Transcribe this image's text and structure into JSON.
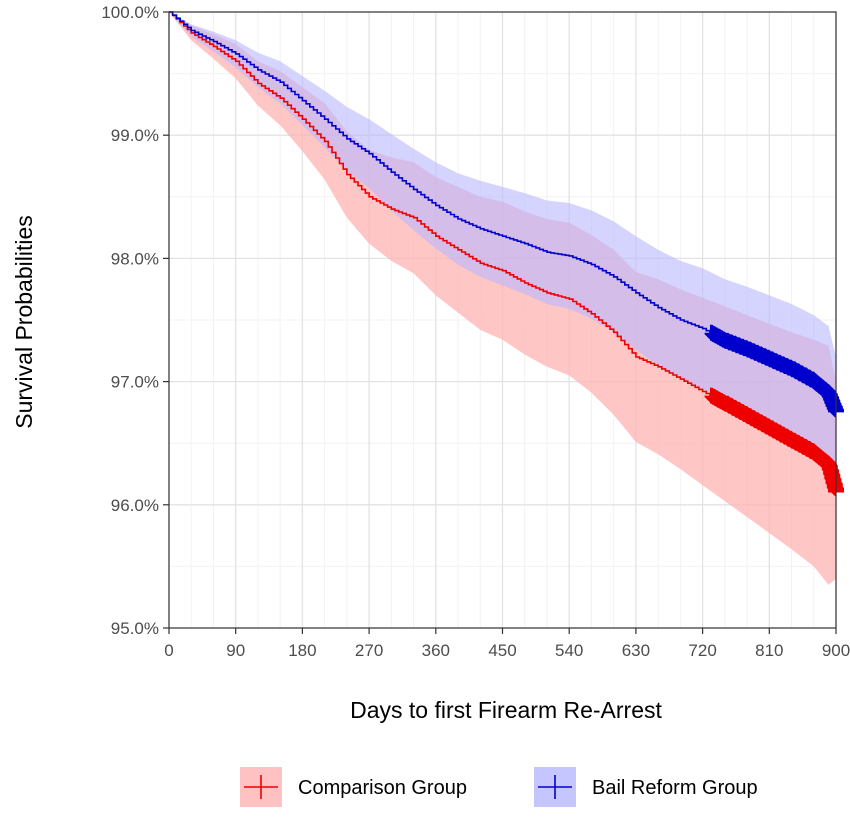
{
  "chart_data": {
    "type": "line",
    "title": "",
    "xlabel": "Days to first Firearm Re-Arrest",
    "ylabel": "Survival Probabilities",
    "xlim": [
      0,
      900
    ],
    "ylim": [
      95.0,
      100.0
    ],
    "x_ticks": [
      0,
      90,
      180,
      270,
      360,
      450,
      540,
      630,
      720,
      810,
      900
    ],
    "x_tick_labels": [
      "0",
      "90",
      "180",
      "270",
      "360",
      "450",
      "540",
      "630",
      "720",
      "810",
      "900"
    ],
    "y_ticks": [
      95,
      96,
      97,
      98,
      99,
      100
    ],
    "y_tick_labels": [
      "95.0%",
      "96.0%",
      "97.0%",
      "98.0%",
      "99.0%",
      "100.0%"
    ],
    "grid": true,
    "legend_position": "bottom",
    "series": [
      {
        "name": "Comparison Group",
        "color": "#ee0000",
        "band_color": "#ffb3b3",
        "x": [
          0,
          30,
          60,
          90,
          120,
          150,
          180,
          210,
          240,
          270,
          300,
          330,
          360,
          390,
          420,
          450,
          480,
          510,
          540,
          570,
          600,
          630,
          660,
          690,
          720,
          750,
          780,
          810,
          840,
          870,
          890,
          900
        ],
        "y": [
          100.0,
          99.83,
          99.72,
          99.6,
          99.42,
          99.3,
          99.13,
          98.95,
          98.68,
          98.5,
          98.4,
          98.33,
          98.18,
          98.07,
          97.96,
          97.9,
          97.8,
          97.72,
          97.67,
          97.55,
          97.4,
          97.2,
          97.12,
          97.02,
          96.92,
          96.82,
          96.72,
          96.62,
          96.52,
          96.42,
          96.32,
          96.1
        ],
        "lower": [
          100.0,
          99.77,
          99.62,
          99.46,
          99.24,
          99.08,
          98.87,
          98.64,
          98.33,
          98.12,
          97.98,
          97.88,
          97.7,
          97.56,
          97.42,
          97.34,
          97.22,
          97.12,
          97.05,
          96.91,
          96.73,
          96.51,
          96.41,
          96.29,
          96.16,
          96.03,
          95.9,
          95.77,
          95.64,
          95.5,
          95.35,
          95.4
        ],
        "upper": [
          100.0,
          99.89,
          99.82,
          99.74,
          99.6,
          99.52,
          99.39,
          99.26,
          99.03,
          98.88,
          98.82,
          98.78,
          98.66,
          98.58,
          98.5,
          98.46,
          98.38,
          98.32,
          98.29,
          98.19,
          98.07,
          97.89,
          97.83,
          97.75,
          97.68,
          97.61,
          97.54,
          97.47,
          97.4,
          97.34,
          97.29,
          97.0
        ],
        "thick_from": 730
      },
      {
        "name": "Bail Reform Group",
        "color": "#0000cc",
        "band_color": "#b8b8ff",
        "x": [
          0,
          30,
          60,
          90,
          120,
          150,
          180,
          210,
          240,
          270,
          300,
          330,
          360,
          390,
          420,
          450,
          480,
          510,
          540,
          570,
          600,
          630,
          660,
          690,
          720,
          750,
          780,
          810,
          840,
          870,
          890,
          900
        ],
        "y": [
          100.0,
          99.85,
          99.76,
          99.66,
          99.53,
          99.43,
          99.28,
          99.13,
          98.97,
          98.85,
          98.7,
          98.56,
          98.43,
          98.32,
          98.24,
          98.18,
          98.12,
          98.05,
          98.02,
          97.95,
          97.85,
          97.72,
          97.6,
          97.5,
          97.43,
          97.33,
          97.26,
          97.18,
          97.1,
          97.0,
          96.9,
          96.75
        ],
        "lower": [
          100.0,
          99.8,
          99.68,
          99.55,
          99.39,
          99.26,
          99.08,
          98.9,
          98.71,
          98.57,
          98.39,
          98.23,
          98.08,
          97.95,
          97.85,
          97.78,
          97.71,
          97.63,
          97.59,
          97.51,
          97.4,
          97.26,
          97.13,
          97.02,
          96.94,
          96.83,
          96.75,
          96.66,
          96.57,
          96.46,
          96.35,
          96.3
        ],
        "upper": [
          100.0,
          99.9,
          99.84,
          99.77,
          99.67,
          99.6,
          99.48,
          99.36,
          99.23,
          99.13,
          99.01,
          98.89,
          98.78,
          98.69,
          98.63,
          98.58,
          98.53,
          98.47,
          98.45,
          98.39,
          98.3,
          98.18,
          98.07,
          97.98,
          97.92,
          97.83,
          97.77,
          97.7,
          97.63,
          97.54,
          97.45,
          97.2
        ],
        "thick_from": 730
      }
    ]
  }
}
